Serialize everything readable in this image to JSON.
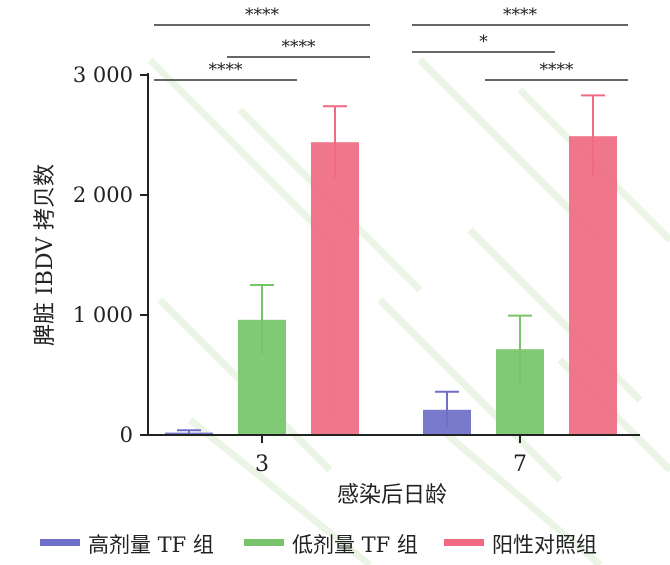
{
  "chart_data": {
    "type": "bar",
    "ylabel": "脾脏 IBDV 拷贝数",
    "xlabel": "感染后日龄",
    "categories": [
      "3",
      "7"
    ],
    "yticks": [
      "0",
      "1 000",
      "2 000",
      "3 000"
    ],
    "ytick_values": [
      0,
      1000,
      2000,
      3000
    ],
    "ylim": [
      0,
      3000
    ],
    "grid": false,
    "legend_position": "bottom",
    "series": [
      {
        "name": "高剂量 TF 组",
        "color": "#6f6fc9",
        "values": [
          20,
          210
        ],
        "errors": [
          20,
          150
        ]
      },
      {
        "name": "低剂量 TF 组",
        "color": "#77c46a",
        "values": [
          960,
          715
        ],
        "errors": [
          290,
          280
        ]
      },
      {
        "name": "阳性对照组",
        "color": "#ef6a82",
        "values": [
          2440,
          2490
        ],
        "errors": [
          300,
          340
        ]
      }
    ],
    "significance": [
      {
        "group": 0,
        "from": 0,
        "to": 2,
        "label": "****"
      },
      {
        "group": 0,
        "from": 1,
        "to": 2,
        "label": "****"
      },
      {
        "group": 0,
        "from": 0,
        "to": 1,
        "label": "****"
      },
      {
        "group": 1,
        "from": 0,
        "to": 2,
        "label": "****"
      },
      {
        "group": 1,
        "from": 0,
        "to": 1,
        "label": "*"
      },
      {
        "group": 1,
        "from": 1,
        "to": 2,
        "label": "****"
      }
    ]
  }
}
